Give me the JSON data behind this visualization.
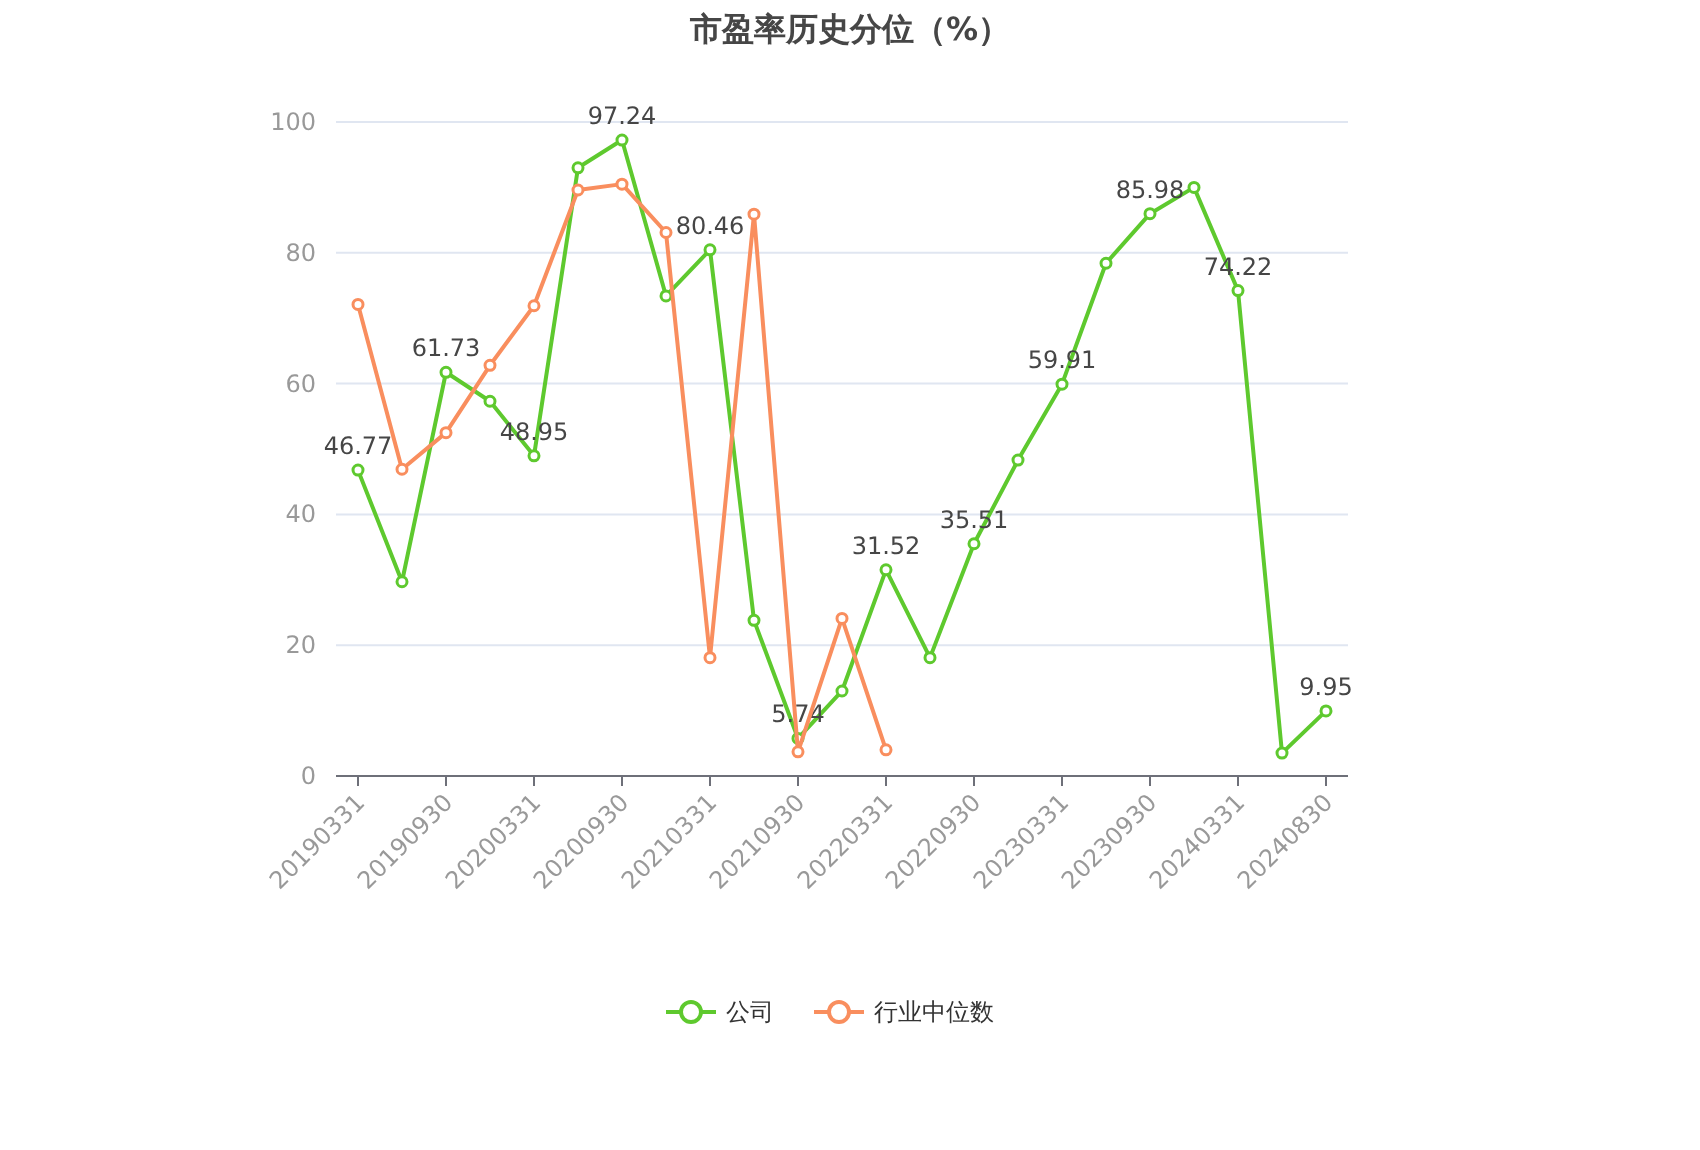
{
  "chart_data": {
    "type": "line",
    "title": "市盈率历史分位（%）",
    "categories": [
      "20190331",
      null,
      "20190930",
      null,
      "20200331",
      null,
      "20200930",
      null,
      "20210331",
      null,
      "20210930",
      null,
      "20220331",
      null,
      "20220930",
      null,
      "20230331",
      null,
      "20230930",
      null,
      "20240331",
      null,
      "20240830"
    ],
    "series": [
      {
        "name": "公司",
        "color": "#5ec92e",
        "values": [
          46.77,
          29.7,
          61.73,
          57.3,
          48.95,
          93.0,
          97.24,
          73.4,
          80.46,
          23.8,
          5.74,
          13.0,
          31.52,
          18.1,
          35.51,
          48.3,
          59.91,
          78.4,
          85.98,
          90.0,
          74.22,
          3.5,
          9.95
        ],
        "value_labels": [
          "46.77",
          null,
          "61.73",
          null,
          "48.95",
          null,
          "97.24",
          null,
          "80.46",
          null,
          "5.74",
          null,
          "31.52",
          null,
          "35.51",
          null,
          "59.91",
          null,
          "85.98",
          null,
          "74.22",
          null,
          "9.95"
        ]
      },
      {
        "name": "行业中位数",
        "color": "#f98e5e",
        "values": [
          72.1,
          46.9,
          52.5,
          62.8,
          71.9,
          89.6,
          90.5,
          83.1,
          18.1,
          85.9,
          3.7,
          24.1,
          4.0,
          null,
          null,
          null,
          null,
          null,
          null,
          null,
          null,
          null,
          null
        ]
      }
    ],
    "ylim": [
      0,
      100
    ],
    "yticks": [
      0,
      20,
      40,
      60,
      80,
      100
    ],
    "grid": "y",
    "legend": "bottom",
    "marker": "circle"
  }
}
